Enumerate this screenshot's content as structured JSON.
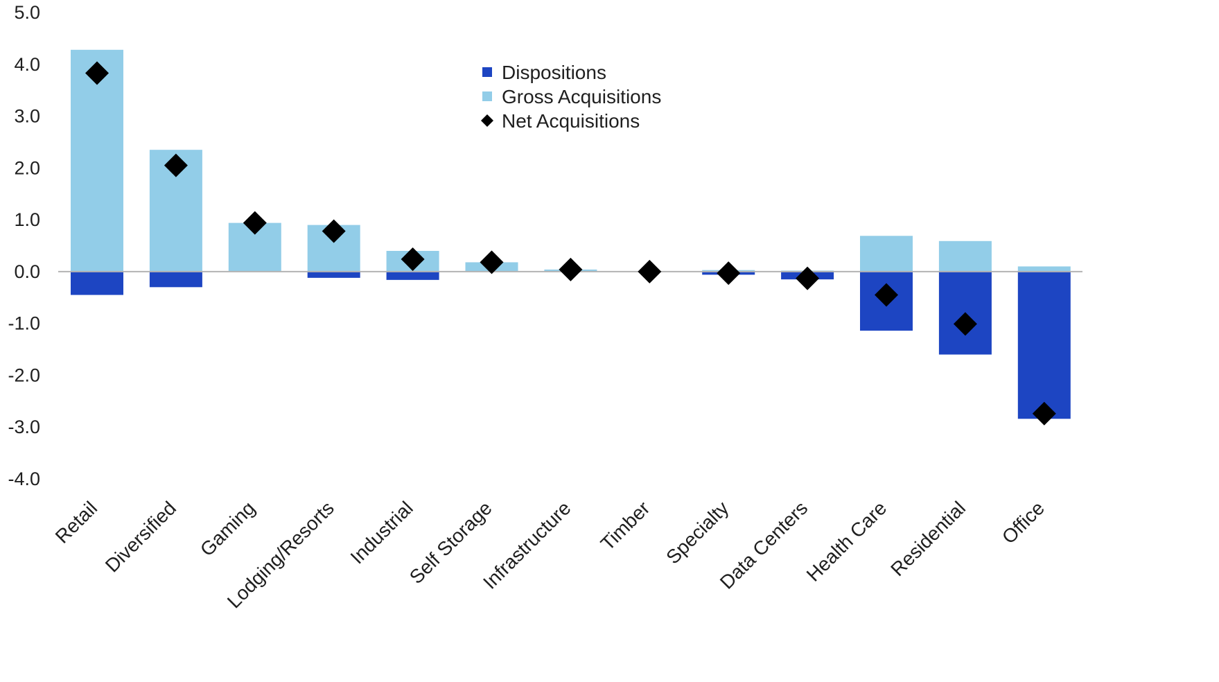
{
  "chart_data": {
    "type": "bar",
    "title": "",
    "xlabel": "",
    "ylabel": "",
    "ylim": [
      -4.0,
      5.0
    ],
    "yticks": [
      "5.0",
      "4.0",
      "3.0",
      "2.0",
      "1.0",
      "0.0",
      "-1.0",
      "-2.0",
      "-3.0",
      "-4.0"
    ],
    "ytick_values": [
      5,
      4,
      3,
      2,
      1,
      0,
      -1,
      -2,
      -3,
      -4
    ],
    "grid": false,
    "legend_position": "top-center",
    "categories": [
      "Retail",
      "Diversified",
      "Gaming",
      "Lodging/Resorts",
      "Industrial",
      "Self Storage",
      "Infrastructure",
      "Timber",
      "Specialty",
      "Data Centers",
      "Health Care",
      "Residential",
      "Office"
    ],
    "series": [
      {
        "name": "Dispositions",
        "kind": "bar",
        "color": "#1d45c2",
        "values": [
          -0.45,
          -0.3,
          0.0,
          -0.12,
          -0.16,
          0.0,
          0.0,
          0.0,
          -0.06,
          -0.15,
          -1.14,
          -1.6,
          -2.84
        ]
      },
      {
        "name": "Gross Acquisitions",
        "kind": "bar",
        "color": "#92cde8",
        "values": [
          4.28,
          2.35,
          0.94,
          0.9,
          0.4,
          0.18,
          0.04,
          0.0,
          0.03,
          0.02,
          0.69,
          0.59,
          0.1
        ]
      },
      {
        "name": "Net Acquisitions",
        "kind": "marker",
        "color": "#000000",
        "values": [
          3.83,
          2.05,
          0.94,
          0.78,
          0.24,
          0.18,
          0.04,
          0.0,
          -0.03,
          -0.13,
          -0.45,
          -1.01,
          -2.74
        ]
      }
    ]
  },
  "colors": {
    "dispositions": "#1d45c2",
    "gross_acquisitions": "#92cde8",
    "net_acquisitions": "#000000",
    "zero_line": "#b3b3b3"
  }
}
